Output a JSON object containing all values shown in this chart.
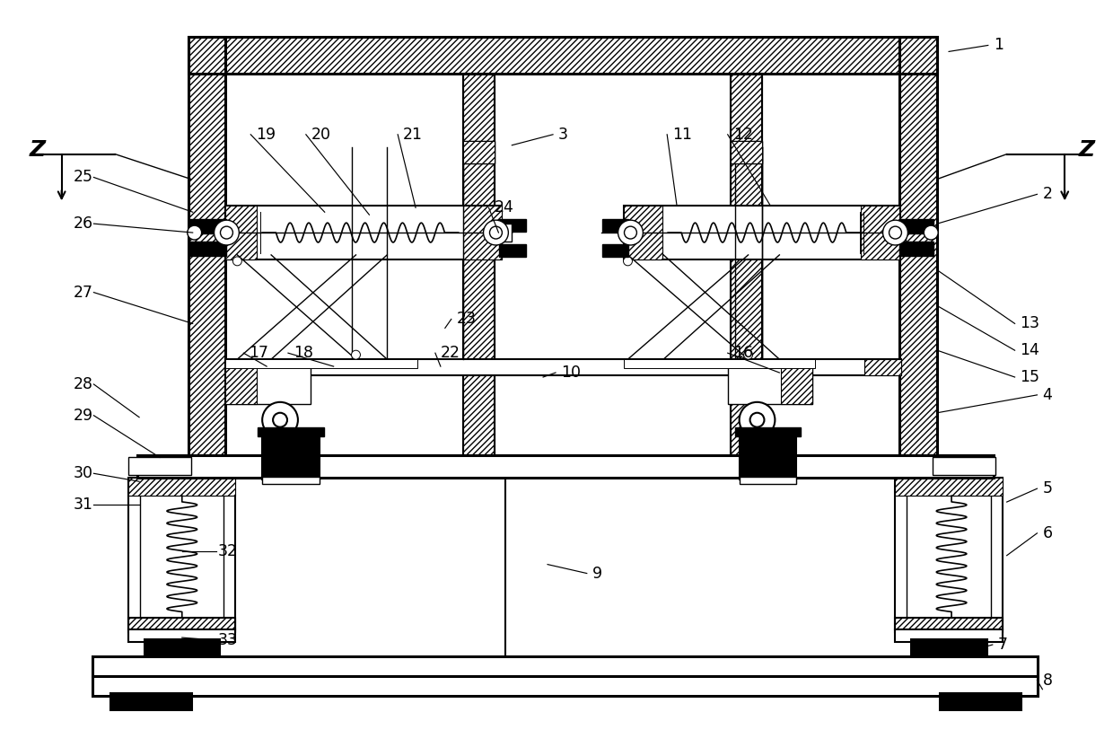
{
  "bg_color": "#ffffff",
  "line_color": "#000000",
  "fig_width": 12.4,
  "fig_height": 8.42,
  "dpi": 100
}
